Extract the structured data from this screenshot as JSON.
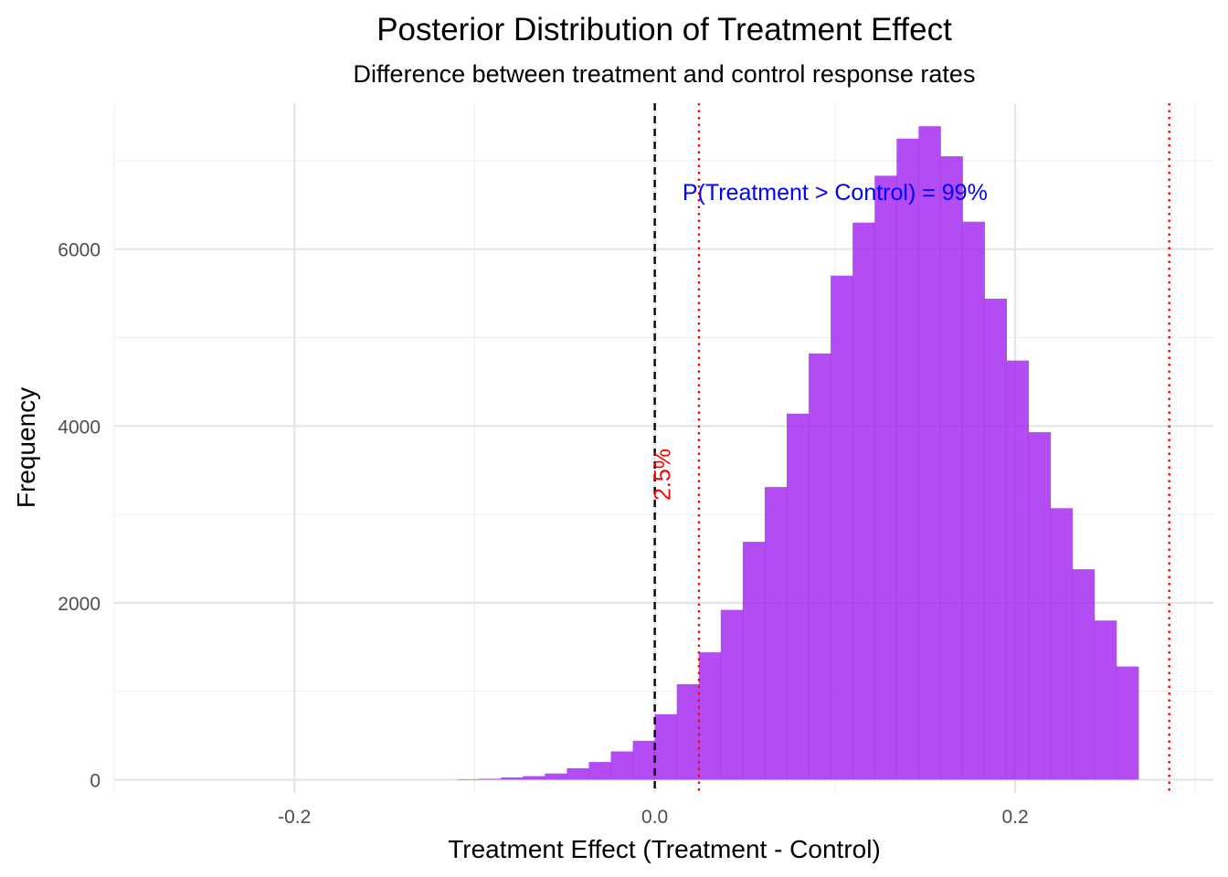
{
  "chart_data": {
    "type": "bar",
    "title": "Posterior Distribution of Treatment Effect",
    "subtitle": "Difference between treatment and control response rates",
    "xlabel": "Treatment Effect (Treatment - Control)",
    "ylabel": "Frequency",
    "xlim": [
      -0.3,
      0.31
    ],
    "ylim": [
      -150,
      7650
    ],
    "x_ticks": [
      -0.2,
      0.0,
      0.2
    ],
    "x_tick_labels": [
      "-0.2",
      "0.0",
      "0.2"
    ],
    "y_ticks": [
      0,
      2000,
      4000,
      6000
    ],
    "y_tick_labels": [
      "0",
      "2000",
      "4000",
      "6000"
    ],
    "x_minor_ticks": [
      -0.3,
      -0.1,
      0.1,
      0.3
    ],
    "y_minor_ticks": [
      1000,
      3000,
      5000,
      7000
    ],
    "grid": true,
    "bin_width": 0.0122,
    "bins": [
      {
        "x": -0.1037,
        "count": 5
      },
      {
        "x": -0.0915,
        "count": 10
      },
      {
        "x": -0.0793,
        "count": 25
      },
      {
        "x": -0.0671,
        "count": 40
      },
      {
        "x": -0.0549,
        "count": 70
      },
      {
        "x": -0.0427,
        "count": 130
      },
      {
        "x": -0.0305,
        "count": 200
      },
      {
        "x": -0.0183,
        "count": 320
      },
      {
        "x": -0.0061,
        "count": 440
      },
      {
        "x": 0.0061,
        "count": 740
      },
      {
        "x": 0.0183,
        "count": 1080
      },
      {
        "x": 0.0305,
        "count": 1440
      },
      {
        "x": 0.0427,
        "count": 1920
      },
      {
        "x": 0.0549,
        "count": 2690
      },
      {
        "x": 0.0671,
        "count": 3310
      },
      {
        "x": 0.0793,
        "count": 4140
      },
      {
        "x": 0.0915,
        "count": 4820
      },
      {
        "x": 0.1037,
        "count": 5700
      },
      {
        "x": 0.1159,
        "count": 6300
      },
      {
        "x": 0.1281,
        "count": 6830
      },
      {
        "x": 0.1403,
        "count": 7250
      },
      {
        "x": 0.1525,
        "count": 7390
      },
      {
        "x": 0.1647,
        "count": 7050
      },
      {
        "x": 0.1769,
        "count": 6310
      },
      {
        "x": 0.1891,
        "count": 5440
      },
      {
        "x": 0.2013,
        "count": 4740
      },
      {
        "x": 0.2135,
        "count": 3930
      },
      {
        "x": 0.2257,
        "count": 3070
      },
      {
        "x": 0.2379,
        "count": 2380
      },
      {
        "x": 0.2501,
        "count": 1800
      },
      {
        "x": 0.2623,
        "count": 1280
      }
    ],
    "bar_color": "#A020F0",
    "bar_opacity": 0.8,
    "reference_lines": [
      {
        "x": 0.0,
        "style": "dashed",
        "color": "#000000"
      },
      {
        "x": 0.0245,
        "style": "dotted",
        "color": "#FF0000"
      },
      {
        "x": 0.2855,
        "style": "dotted",
        "color": "#FF0000"
      }
    ],
    "annotations": [
      {
        "text": "P(Treatment > Control) = 99%",
        "x": 0.1,
        "y": 6650,
        "color": "#0000FF",
        "rotate": 0
      },
      {
        "text": "2.5%",
        "x": 0.0045,
        "y": 3450,
        "color": "#FF0000",
        "rotate": -90
      }
    ]
  }
}
